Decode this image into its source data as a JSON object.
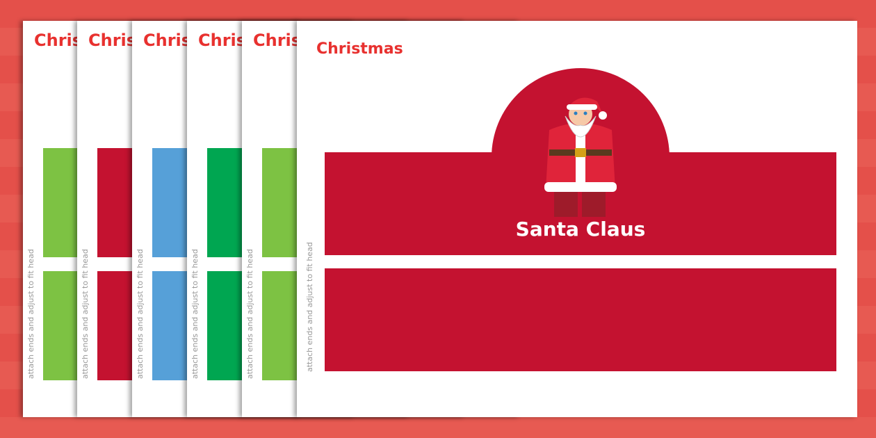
{
  "pages": [
    {
      "title": "Christmas",
      "color": "#7dc243",
      "instruction": "attach ends and adjust to fit head"
    },
    {
      "title": "Christmas",
      "color": "#c41230",
      "instruction": "attach ends and adjust to fit head"
    },
    {
      "title": "Christmas",
      "color": "#56a0d8",
      "instruction": "attach ends and adjust to fit head"
    },
    {
      "title": "Christmas",
      "color": "#00a651",
      "instruction": "attach ends and adjust to fit head"
    },
    {
      "title": "Christmas",
      "color": "#7dc243",
      "instruction": "attach ends and adjust to fit head"
    }
  ],
  "main": {
    "title": "Christmas",
    "heading": "Santa Claus",
    "color": "#c41230",
    "instruction": "attach ends and adjust to fit head",
    "illustration": "santa-claus"
  }
}
